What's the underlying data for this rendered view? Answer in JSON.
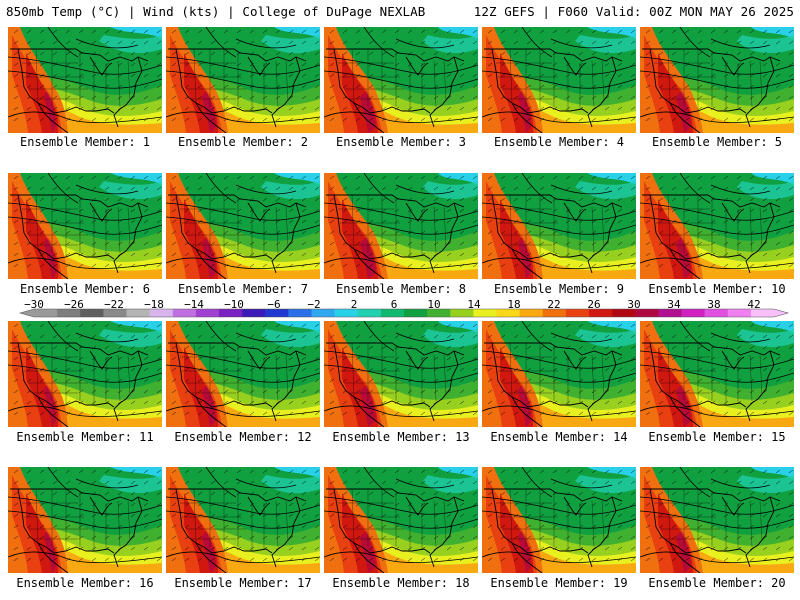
{
  "header": {
    "left_title": "850mb Temp (°C) | Wind (kts) | College of DuPage NEXLAB",
    "right_title": "12Z GEFS | F060 Valid: 00Z MON MAY 26 2025"
  },
  "panels": [
    {
      "label": "Ensemble Member: 1"
    },
    {
      "label": "Ensemble Member: 2"
    },
    {
      "label": "Ensemble Member: 3"
    },
    {
      "label": "Ensemble Member: 4"
    },
    {
      "label": "Ensemble Member: 5"
    },
    {
      "label": "Ensemble Member: 6"
    },
    {
      "label": "Ensemble Member: 7"
    },
    {
      "label": "Ensemble Member: 8"
    },
    {
      "label": "Ensemble Member: 9"
    },
    {
      "label": "Ensemble Member: 10"
    },
    {
      "label": "Ensemble Member: 11"
    },
    {
      "label": "Ensemble Member: 12"
    },
    {
      "label": "Ensemble Member: 13"
    },
    {
      "label": "Ensemble Member: 14"
    },
    {
      "label": "Ensemble Member: 15"
    },
    {
      "label": "Ensemble Member: 16"
    },
    {
      "label": "Ensemble Member: 17"
    },
    {
      "label": "Ensemble Member: 18"
    },
    {
      "label": "Ensemble Member: 19"
    },
    {
      "label": "Ensemble Member: 20"
    }
  ],
  "colorbar": {
    "tick_labels": [
      "−30",
      "−26",
      "−22",
      "−18",
      "−14",
      "−10",
      "−6",
      "−2",
      "2",
      "6",
      "10",
      "14",
      "18",
      "22",
      "26",
      "30",
      "34",
      "38",
      "42"
    ],
    "colors": [
      "#9a9a9a",
      "#7d7d7d",
      "#5f5f5f",
      "#8a8a8a",
      "#b4b4b4",
      "#d8b4ec",
      "#c070e0",
      "#a040d0",
      "#7a20c0",
      "#3c1ab8",
      "#2038d0",
      "#2a70e8",
      "#30a8f0",
      "#28d0e8",
      "#20d0b0",
      "#10b870",
      "#10a040",
      "#40b030",
      "#98d020",
      "#e8f020",
      "#f8d818",
      "#f8a810",
      "#f07010",
      "#e84010",
      "#d01810",
      "#b00810",
      "#b00840",
      "#b01090",
      "#d020c0",
      "#e050e0",
      "#f080f0",
      "#f8c0f8"
    ]
  }
}
